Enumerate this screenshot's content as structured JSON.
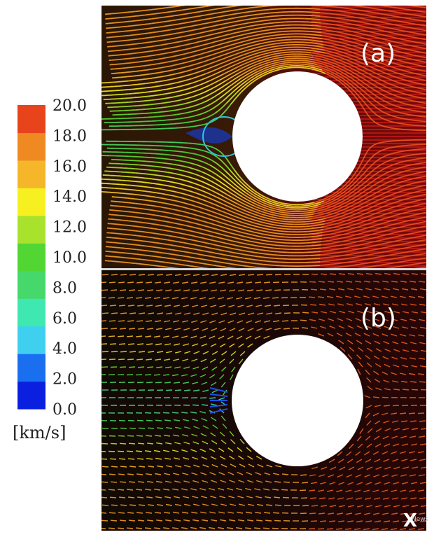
{
  "colorbar": {
    "ticks": [
      "20.0",
      "18.0",
      "16.0",
      "14.0",
      "12.0",
      "10.0",
      "8.0",
      "6.0",
      "4.0",
      "2.0",
      "0.0"
    ],
    "unit": "[km/s]",
    "colors": [
      "#0a1fe0",
      "#1a6ff0",
      "#3fd0f0",
      "#3fe8b0",
      "#46d86a",
      "#52d634",
      "#a8e22c",
      "#f6f020",
      "#f6b62a",
      "#ef8a22",
      "#e8441c"
    ]
  },
  "panels": {
    "a": {
      "label": "(a)"
    },
    "b": {
      "label": "(b)"
    }
  },
  "watermark": {
    "glyph": "X",
    "text": "News"
  }
}
